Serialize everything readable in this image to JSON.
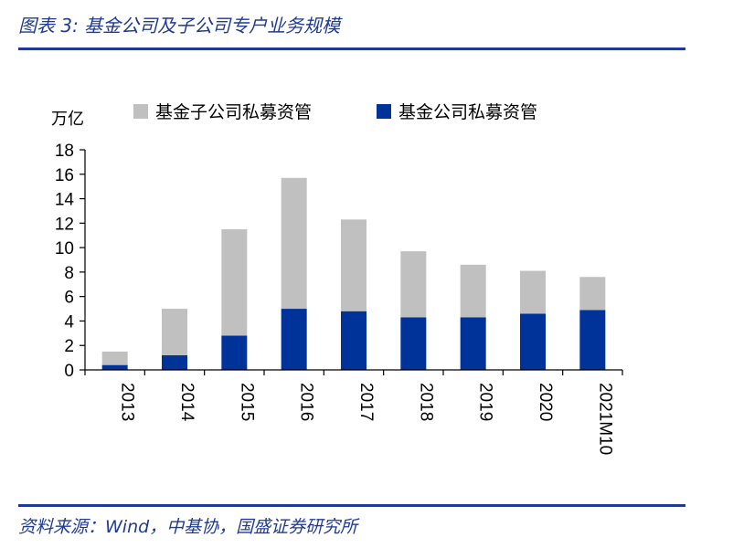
{
  "figure": {
    "title": "图表 3:  基金公司及子公司专户业务规模",
    "source": "资料来源：Wind，中基协，国盛证券研究所"
  },
  "chart_data": {
    "type": "bar",
    "stacked": true,
    "unit": "万亿",
    "categories": [
      "2013",
      "2014",
      "2015",
      "2016",
      "2017",
      "2018",
      "2019",
      "2020",
      "2021M10"
    ],
    "series": [
      {
        "name": "基金公司私募资管",
        "color": "#003399",
        "values": [
          0.4,
          1.2,
          2.8,
          5.0,
          4.8,
          4.3,
          4.3,
          4.6,
          4.9
        ]
      },
      {
        "name": "基金子公司私募资管",
        "color": "#c0c0c0",
        "values": [
          1.1,
          3.8,
          8.7,
          10.7,
          7.5,
          5.4,
          4.3,
          3.5,
          2.7
        ]
      }
    ],
    "legend_order": [
      "基金子公司私募资管",
      "基金公司私募资管"
    ],
    "yticks": [
      "0",
      "2",
      "4",
      "6",
      "8",
      "10",
      "12",
      "14",
      "16",
      "18"
    ],
    "ylim": [
      0,
      18
    ],
    "legend_position": "top",
    "grid": false
  }
}
